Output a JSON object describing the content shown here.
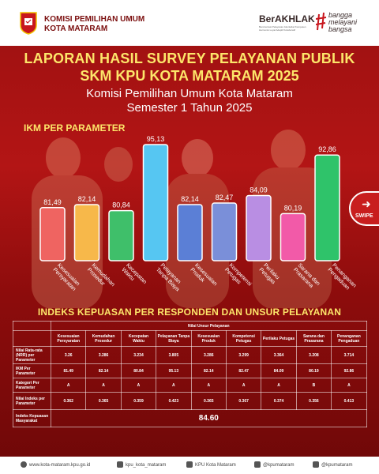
{
  "header": {
    "org_line1": "KOMISI PEMILIHAN UMUM",
    "org_line2": "KOTA MATARAM",
    "berakhlak": "BerAKHLAK",
    "berakhlak_sub": "Berorientasi Pelayanan Akuntabel Kompeten Harmonis Loyal Adaptif Kolaboratif",
    "bangga_line1": "bangga",
    "bangga_line2": "melayani",
    "bangga_line3": "bangsa"
  },
  "titles": {
    "line1": "LAPORAN HASIL SURVEY PELAYANAN PUBLIK",
    "line2": "SKM KPU KOTA MATARAM 2025",
    "sub1": "Komisi Pemilihan Umum Kota Mataram",
    "sub2": "Semester 1 Tahun 2025"
  },
  "swipe_label": "SWIPE",
  "chart_data": {
    "type": "bar",
    "title": "IKM PER PARAMETER",
    "categories": [
      "Kesesuaian Persyaratan",
      "Kemudahan Prosedur",
      "Kecepatan Waktu",
      "Pelayanan Tanpa Biaya",
      "Kesesuaian Produk",
      "Kompetensi Petugas",
      "Perilaku Petugas",
      "Sarana dan Prasarana",
      "Penanganan Pengaduan"
    ],
    "category_lines": [
      [
        "Kesesuaian",
        "Persyaratan"
      ],
      [
        "Kemudahan",
        "Prosedur"
      ],
      [
        "Kecepatan",
        "Waktu"
      ],
      [
        "Pelayanan",
        "Tanpa Biaya"
      ],
      [
        "Kesesuaian",
        "Produk"
      ],
      [
        "Kompetensi",
        "Petugas"
      ],
      [
        "Perilaku",
        "Petugas"
      ],
      [
        "Sarana dan",
        "Prasarana"
      ],
      [
        "Penanganan",
        "Pengaduan"
      ]
    ],
    "values": [
      81.49,
      82.14,
      80.84,
      95.13,
      82.14,
      82.47,
      84.09,
      80.19,
      92.86
    ],
    "value_labels": [
      "81,49",
      "82,14",
      "80,84",
      "95,13",
      "82,14",
      "82,47",
      "84,09",
      "80,19",
      "92,86"
    ],
    "colors": [
      "#ef6461",
      "#f7b84a",
      "#3fbf6a",
      "#56c6f2",
      "#5b7fd6",
      "#7a8fd9",
      "#b98ee3",
      "#f25aa8",
      "#2fc36a"
    ],
    "ylim": [
      70,
      97
    ]
  },
  "table": {
    "title": "INDEKS KEPUASAN PER RESPONDEN DAN UNSUR PELAYANAN",
    "group_header": "Nilai Unsur Pelayanan",
    "columns": [
      "Kesesuaian Persyaratan",
      "Kemudahan Prosedur",
      "Kecepatan Waktu",
      "Pelayanan Tanpa Biaya",
      "Kesesuaian Produk",
      "Kompetensi Petugas",
      "Perilaku Petugas",
      "Sarana dan Prasarana",
      "Penanganan Pengaduan"
    ],
    "rows": [
      {
        "label": "Nilai Rata-rata (NRR) per Parameter",
        "values": [
          "3.26",
          "3.286",
          "3.234",
          "3.805",
          "3.286",
          "3.299",
          "3.364",
          "3.208",
          "3.714"
        ]
      },
      {
        "label": "IKM Per Parameter",
        "values": [
          "81.49",
          "82.14",
          "80.84",
          "95.13",
          "82.14",
          "82.47",
          "84.09",
          "80.19",
          "92.86"
        ]
      },
      {
        "label": "Kategori Per Parameter",
        "values": [
          "A",
          "A",
          "A",
          "A",
          "A",
          "A",
          "A",
          "B",
          "A"
        ]
      },
      {
        "label": "Nilai Indeks per Parameter",
        "values": [
          "0.362",
          "0.365",
          "0.359",
          "0.423",
          "0.365",
          "0.367",
          "0.374",
          "0.356",
          "0.413"
        ]
      }
    ],
    "total_label": "Indeks Kepuasan Masyarakat",
    "total_value": "84.60"
  },
  "footer": {
    "website": "www.kota-mataram.kpu.go.id",
    "x": "kpu_kota_mataram",
    "facebook": "KPU Kota Mataram",
    "instagram": "@kpumataram",
    "tiktok": "@kpumataram"
  }
}
